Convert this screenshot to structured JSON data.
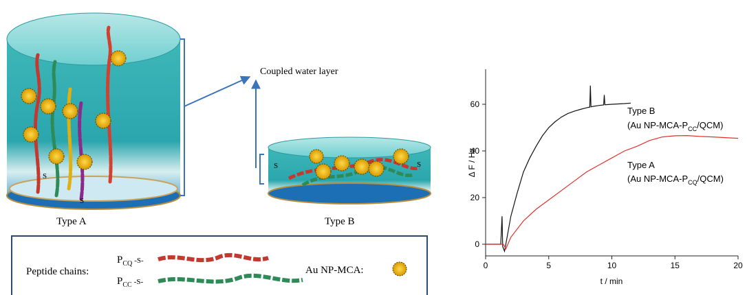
{
  "diagram": {
    "coupled_label": "Coupled water layer",
    "type_a_label": "Type A",
    "type_b_label": "Type B",
    "thiol": "S",
    "legend": {
      "peptide_label": "Peptide chains:",
      "p": "P",
      "cq": "CQ",
      "cc": "CC",
      "link": "-S-",
      "np_label": "Au NP-MCA:"
    }
  },
  "chart_data": {
    "type": "line",
    "xlabel": "t / min",
    "ylabel": "Δ F / Hz",
    "xlim": [
      0,
      20
    ],
    "ylim": [
      -5,
      75
    ],
    "xticks": [
      0,
      5,
      10,
      15,
      20
    ],
    "yticks": [
      0,
      20,
      40,
      60
    ],
    "series": [
      {
        "color": "#111111",
        "x": [
          0,
          1.2,
          1.3,
          1.35,
          1.5,
          1.7,
          2,
          2.5,
          3,
          3.5,
          4,
          4.5,
          5,
          5.5,
          6,
          6.5,
          7,
          7.5,
          8,
          8.25,
          8.3,
          8.35,
          8.5,
          9,
          9.35,
          9.4,
          9.45,
          10,
          11,
          11.5
        ],
        "values": [
          0,
          0,
          12,
          -1,
          -3,
          3,
          12,
          22,
          31,
          37,
          42,
          46.5,
          50,
          52.5,
          54.5,
          56,
          57,
          57.8,
          58.5,
          58.8,
          68,
          58.9,
          59.1,
          59.5,
          59.7,
          64,
          59.8,
          60,
          60.3,
          60.5
        ]
      },
      {
        "color": "#e0302a",
        "x": [
          0,
          1.4,
          1.6,
          2,
          3,
          4,
          5,
          6,
          7,
          8,
          9,
          10,
          11,
          12,
          13,
          14,
          15,
          16,
          17,
          18,
          19,
          20
        ],
        "values": [
          0,
          0,
          -2,
          3,
          10,
          15,
          19,
          23,
          27,
          31,
          34,
          37,
          40,
          42,
          44.5,
          46,
          46.5,
          46.6,
          46.2,
          46,
          45.7,
          45.4
        ]
      }
    ],
    "annotations": [
      {
        "title": "Type B",
        "label": "(Au NP-MCA-P",
        "sub": "CC",
        "tail": "/QCM)"
      },
      {
        "title": "Type A",
        "label": "(Au NP-MCA-P",
        "sub": "CQ",
        "tail": "/QCM)"
      }
    ]
  }
}
